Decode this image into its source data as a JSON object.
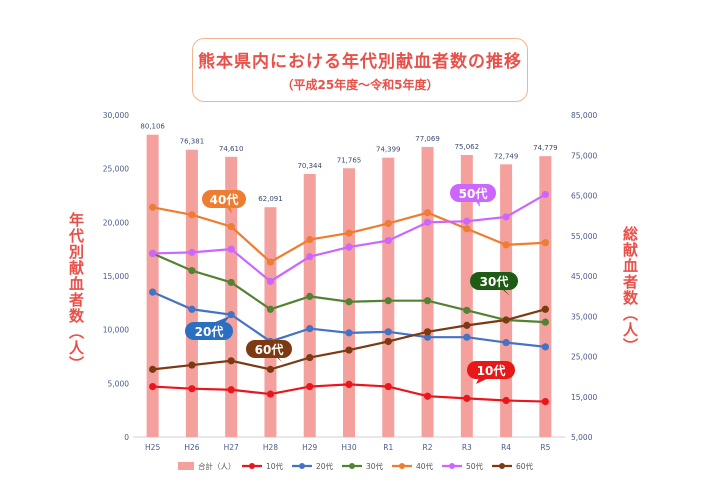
{
  "title": "熊本県内における年代別献血者数の推移",
  "subtitle": "（平成25年度～令和5年度）",
  "chart_data": {
    "type": "bar+line",
    "categories": [
      "H25",
      "H26",
      "H27",
      "H28",
      "H29",
      "H30",
      "R1",
      "R2",
      "R3",
      "R4",
      "R5"
    ],
    "left_axis": {
      "label": "年代別献血者数（人）",
      "min": 0,
      "max": 30000,
      "ticks": [
        "0",
        "5,000",
        "10,000",
        "15,000",
        "20,000",
        "25,000",
        "30,000"
      ]
    },
    "right_axis": {
      "label": "総献血者数（人）",
      "min": 5000,
      "max": 85000,
      "ticks": [
        "5,000",
        "15,000",
        "25,000",
        "35,000",
        "45,000",
        "55,000",
        "65,000",
        "75,000",
        "85,000"
      ]
    },
    "bar_series": {
      "name": "合計（人）",
      "color": "#f4a09c",
      "values": [
        80106,
        76381,
        74610,
        62091,
        70344,
        71765,
        74399,
        77069,
        75062,
        72749,
        74779
      ],
      "labels": [
        "80,106",
        "76,381",
        "74,610",
        "62,091",
        "70,344",
        "71,765",
        "74,399",
        "77,069",
        "75,062",
        "72,749",
        "74,779"
      ]
    },
    "series": [
      {
        "name": "10代",
        "color": "#e8161d",
        "values": [
          4700,
          4500,
          4400,
          4000,
          4700,
          4900,
          4700,
          3800,
          3600,
          3400,
          3300
        ]
      },
      {
        "name": "20代",
        "color": "#4472c4",
        "values": [
          13500,
          11900,
          11400,
          8900,
          10100,
          9700,
          9800,
          9300,
          9300,
          8800,
          8400
        ]
      },
      {
        "name": "30代",
        "color": "#548235",
        "values": [
          17100,
          15500,
          14400,
          11900,
          13100,
          12600,
          12700,
          12700,
          11800,
          10900,
          10700
        ]
      },
      {
        "name": "40代",
        "color": "#ed7d31",
        "values": [
          21400,
          20700,
          19600,
          16300,
          18400,
          19000,
          19900,
          20900,
          19400,
          17900,
          18100
        ]
      },
      {
        "name": "50代",
        "color": "#cc66ff",
        "values": [
          17100,
          17200,
          17500,
          14500,
          16800,
          17700,
          18300,
          20000,
          20100,
          20500,
          22600
        ]
      },
      {
        "name": "60代",
        "color": "#7b3a12",
        "values": [
          6300,
          6700,
          7100,
          6300,
          7400,
          8100,
          8900,
          9800,
          10400,
          10900,
          11900
        ]
      }
    ],
    "callouts": [
      {
        "text": "40代",
        "color": "#ed7d31"
      },
      {
        "text": "50代",
        "color": "#cc66ff"
      },
      {
        "text": "30代",
        "color": "#1e5b14"
      },
      {
        "text": "20代",
        "color": "#2a6fc0"
      },
      {
        "text": "60代",
        "color": "#7b3a12"
      },
      {
        "text": "10代",
        "color": "#e81818"
      }
    ],
    "legend": [
      "合計（人）",
      "10代",
      "20代",
      "30代",
      "40代",
      "50代",
      "60代"
    ],
    "legend_position": "bottom",
    "grid": false
  }
}
